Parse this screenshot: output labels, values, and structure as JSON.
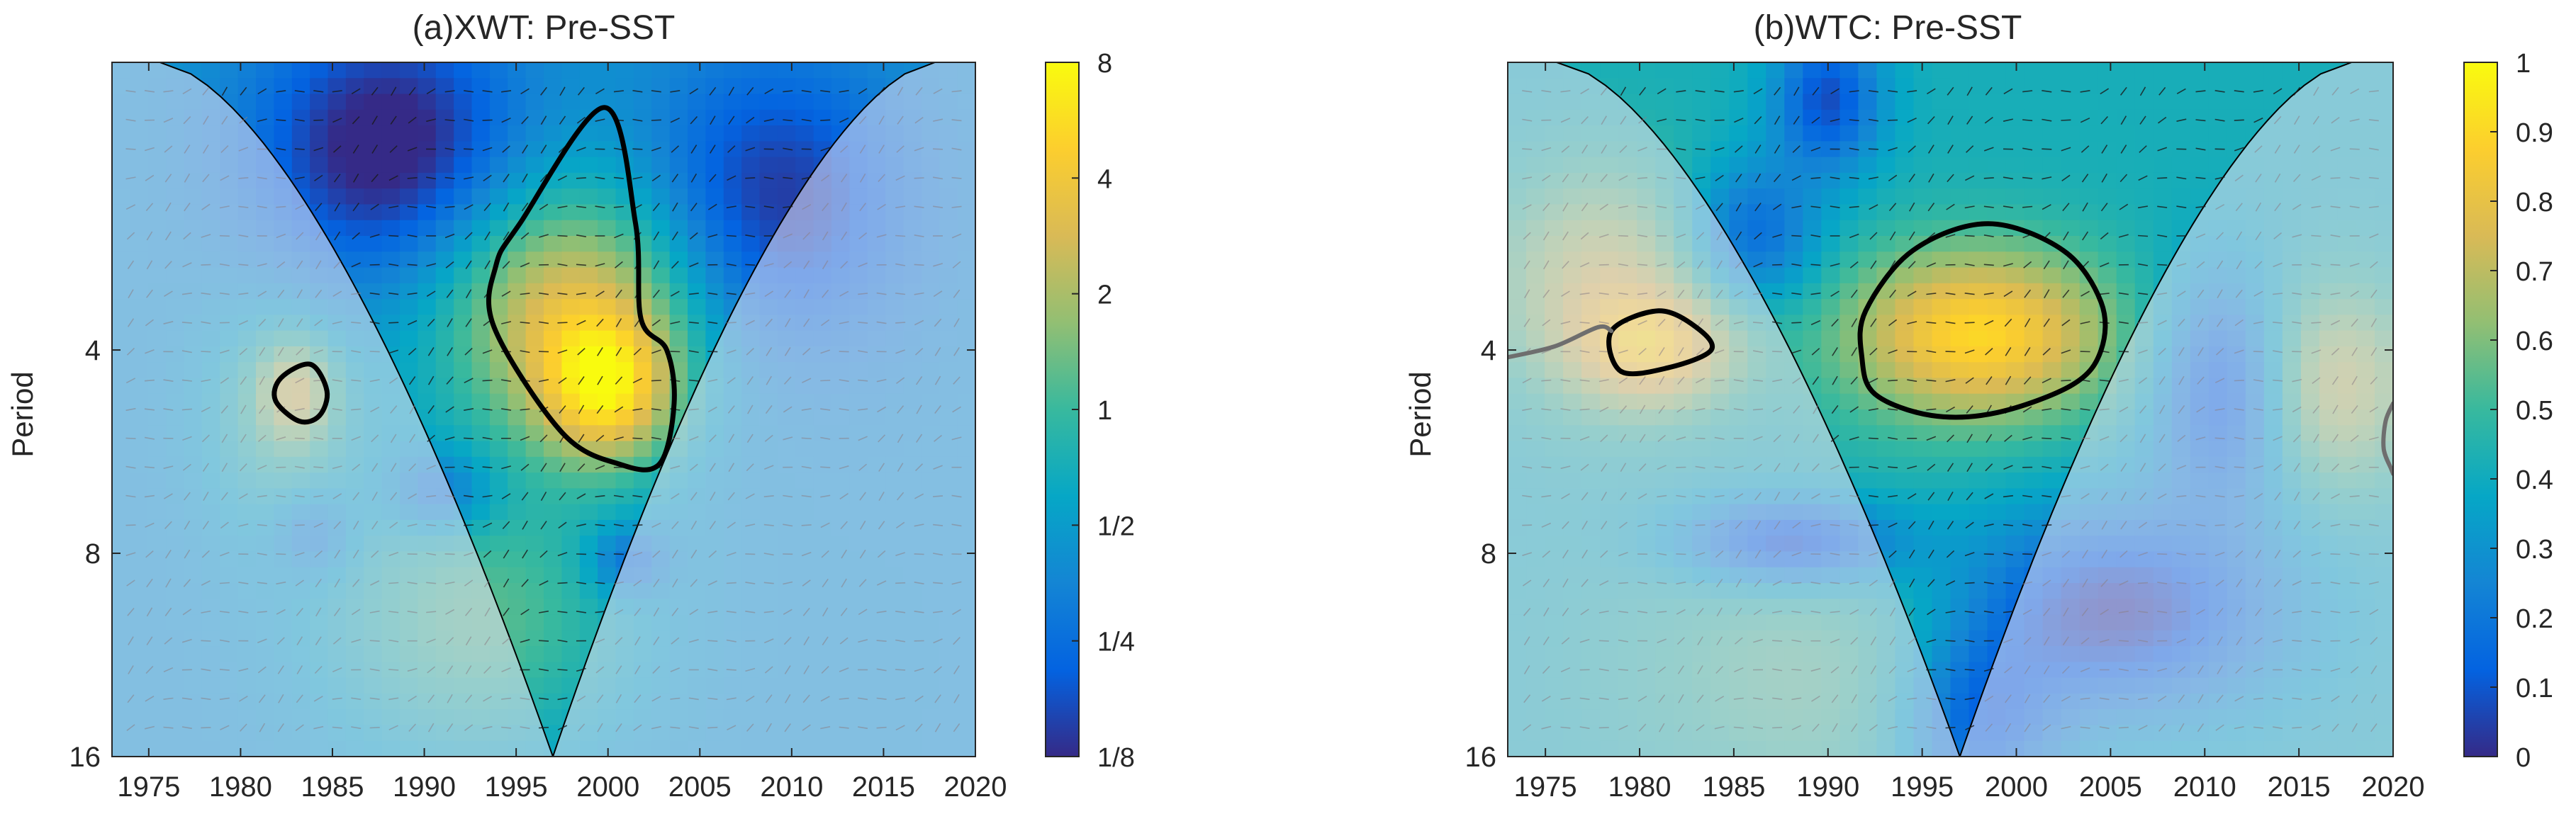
{
  "colors": {
    "parula": [
      "#352a87",
      "#0363e1",
      "#1485d4",
      "#06a7c6",
      "#38b99e",
      "#92bf73",
      "#d9ba56",
      "#fcce2e",
      "#f9fb0e"
    ],
    "axis": "#262626",
    "mask": "#e6e2f2",
    "significant_contour": "#000000",
    "coi_line": "#000000",
    "outside_contour": "#6e6e6e"
  },
  "chart_data": [
    {
      "panel": "a",
      "type": "heatmap",
      "title": "(a)XWT: Pre-SST",
      "xlabel": "",
      "ylabel": "Period",
      "xlim": [
        1973,
        2020
      ],
      "ylim": [
        1.5,
        16
      ],
      "y_scale": "log2",
      "xticks": [
        1975,
        1980,
        1985,
        1990,
        1995,
        2000,
        2005,
        2010,
        2015,
        2020
      ],
      "xtick_labels": [
        "1975",
        "1980",
        "1985",
        "1990",
        "1995",
        "2000",
        "2005",
        "2010",
        "2015",
        "2020"
      ],
      "yticks": [
        4,
        8,
        16
      ],
      "ytick_labels": [
        "4",
        "8",
        "16"
      ],
      "colorbar": {
        "scale": "log2",
        "min": 0.125,
        "max": 8,
        "ticks": [
          0.125,
          0.25,
          0.5,
          1,
          2,
          4,
          8
        ],
        "tick_labels": [
          "1/8",
          "1/4",
          "1/2",
          "1",
          "2",
          "4",
          "8"
        ]
      },
      "cone_of_influence": {
        "left_top_year": 1975.6,
        "right_top_year": 2017.8,
        "apex_year": 1997,
        "apex_period": 16
      },
      "significant_regions": [
        {
          "points": [
            [
              1995.2,
              2.6
            ],
            [
              1999.8,
              1.75
            ],
            [
              2001.5,
              2.6
            ],
            [
              2001.8,
              3.6
            ],
            [
              2003.2,
              4.0
            ],
            [
              2003.6,
              4.8
            ],
            [
              2002.8,
              5.9
            ],
            [
              2000.6,
              5.9
            ],
            [
              1997.5,
              5.3
            ],
            [
              1993.8,
              3.7
            ],
            [
              1993.9,
              3.0
            ]
          ]
        },
        {
          "points": [
            [
              1982.2,
              4.4
            ],
            [
              1983.8,
              4.2
            ],
            [
              1984.7,
              4.6
            ],
            [
              1984.3,
              5.0
            ],
            [
              1983.2,
              5.1
            ],
            [
              1981.9,
              4.75
            ]
          ]
        }
      ],
      "field": {
        "base_value": 0.45,
        "hotspots": [
          {
            "year": 1998,
            "period": 3.5,
            "value": 3.2,
            "sx": 5,
            "sy": 0.45
          },
          {
            "year": 2000,
            "period": 4.6,
            "value": 2.6,
            "sx": 2.5,
            "sy": 0.25
          },
          {
            "year": 1983,
            "period": 4.6,
            "value": 1.4,
            "sx": 1.5,
            "sy": 0.18
          },
          {
            "year": 1993,
            "period": 10,
            "value": 1.2,
            "sx": 6,
            "sy": 0.5
          },
          {
            "year": 1982,
            "period": 5,
            "value": 0.9,
            "sx": 3,
            "sy": 0.4
          }
        ],
        "lowspots": [
          {
            "year": 1988,
            "period": 2.0,
            "value": 0.1,
            "sx": 5,
            "sy": 0.45
          },
          {
            "year": 2009,
            "period": 2.4,
            "value": 0.14,
            "sx": 5,
            "sy": 0.5
          },
          {
            "year": 1991,
            "period": 6.5,
            "value": 0.2,
            "sx": 2,
            "sy": 0.15
          },
          {
            "year": 2001,
            "period": 8.2,
            "value": 0.2,
            "sx": 1.5,
            "sy": 0.12
          },
          {
            "year": 1984,
            "period": 7.5,
            "value": 0.25,
            "sx": 1.5,
            "sy": 0.15
          }
        ]
      }
    },
    {
      "panel": "b",
      "type": "heatmap",
      "title": "(b)WTC: Pre-SST",
      "xlabel": "",
      "ylabel": "Period",
      "xlim": [
        1973,
        2020
      ],
      "ylim": [
        1.5,
        16
      ],
      "y_scale": "log2",
      "xticks": [
        1975,
        1980,
        1985,
        1990,
        1995,
        2000,
        2005,
        2010,
        2015,
        2020
      ],
      "xtick_labels": [
        "1975",
        "1980",
        "1985",
        "1990",
        "1995",
        "2000",
        "2005",
        "2010",
        "2015",
        "2020"
      ],
      "yticks": [
        4,
        8,
        16
      ],
      "ytick_labels": [
        "4",
        "8",
        "16"
      ],
      "colorbar": {
        "scale": "linear",
        "min": 0,
        "max": 1,
        "ticks": [
          0,
          0.1,
          0.2,
          0.3,
          0.4,
          0.5,
          0.6,
          0.7,
          0.8,
          0.9,
          1
        ],
        "tick_labels": [
          "0",
          "0.1",
          "0.2",
          "0.3",
          "0.4",
          "0.5",
          "0.6",
          "0.7",
          "0.8",
          "0.9",
          "1"
        ]
      },
      "cone_of_influence": {
        "left_top_year": 1975.6,
        "right_top_year": 2017.8,
        "apex_year": 1997,
        "apex_period": 16
      },
      "significant_regions": [
        {
          "points": [
            [
              1992.0,
              3.5
            ],
            [
              1994.5,
              2.85
            ],
            [
              1998.5,
              2.6
            ],
            [
              2002.5,
              2.85
            ],
            [
              2004.5,
              3.4
            ],
            [
              2004.5,
              4.0
            ],
            [
              2003.0,
              4.5
            ],
            [
              1999.0,
              4.95
            ],
            [
              1995.5,
              5.0
            ],
            [
              1992.5,
              4.65
            ],
            [
              1991.8,
              4.1
            ]
          ]
        },
        {
          "points": [
            [
              1978.5,
              3.75
            ],
            [
              1981.0,
              3.5
            ],
            [
              1983.0,
              3.7
            ],
            [
              1983.8,
              4.0
            ],
            [
              1981.5,
              4.25
            ],
            [
              1979.0,
              4.3
            ]
          ]
        }
      ],
      "outside_contours": [
        {
          "points": [
            [
              1973.0,
              4.1
            ],
            [
              1975.5,
              3.95
            ],
            [
              1977.8,
              3.7
            ],
            [
              1978.5,
              3.75
            ]
          ]
        },
        {
          "points": [
            [
              2020.0,
              4.8
            ],
            [
              2019.6,
              5.1
            ],
            [
              2019.5,
              5.6
            ],
            [
              2019.9,
              6.0
            ],
            [
              2020.0,
              6.1
            ]
          ]
        }
      ],
      "field": {
        "base_value": 0.42,
        "hotspots": [
          {
            "year": 1998,
            "period": 3.8,
            "value": 0.9,
            "sx": 5,
            "sy": 0.3
          },
          {
            "year": 1981,
            "period": 4.0,
            "value": 0.75,
            "sx": 3,
            "sy": 0.2
          },
          {
            "year": 1978,
            "period": 3.2,
            "value": 0.7,
            "sx": 4,
            "sy": 0.4
          },
          {
            "year": 2017,
            "period": 4.5,
            "value": 0.7,
            "sx": 3,
            "sy": 0.35
          },
          {
            "year": 1990,
            "period": 12,
            "value": 0.55,
            "sx": 8,
            "sy": 0.5
          }
        ],
        "lowspots": [
          {
            "year": 1990,
            "period": 1.7,
            "value": 0.08,
            "sx": 2,
            "sy": 0.25
          },
          {
            "year": 1986,
            "period": 2.7,
            "value": 0.15,
            "sx": 2.5,
            "sy": 0.25
          },
          {
            "year": 2011,
            "period": 4.6,
            "value": 0.1,
            "sx": 2.5,
            "sy": 0.4
          },
          {
            "year": 1988,
            "period": 7.7,
            "value": 0.05,
            "sx": 4,
            "sy": 0.15
          },
          {
            "year": 2005,
            "period": 9.8,
            "value": 0.02,
            "sx": 6,
            "sy": 0.35
          },
          {
            "year": 1998,
            "period": 14.5,
            "value": 0.12,
            "sx": 3,
            "sy": 0.3
          }
        ]
      }
    }
  ]
}
